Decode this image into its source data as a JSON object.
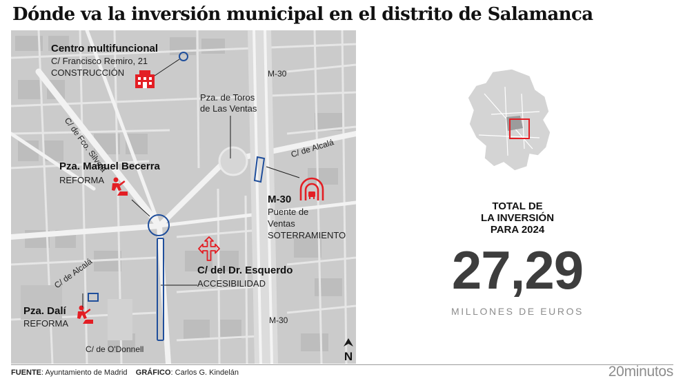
{
  "title": "Dónde va la inversión municipal en el distrito de Salamanca",
  "colors": {
    "red": "#e31e24",
    "blue": "#1f4e9b",
    "map_bg": "#c9c9c9",
    "roads": "#ececec"
  },
  "map": {
    "projects": [
      {
        "name": "Centro multifuncional",
        "address": "C/ Francisco Remiro, 21",
        "type": "CONSTRUCCIÓN",
        "icon": "building-icon"
      },
      {
        "name": "Pza. Manuel Becerra",
        "type": "REFORMA",
        "icon": "roadwork-icon"
      },
      {
        "name": "M-30",
        "line1": "Puente de",
        "line2": "Ventas",
        "type": "SOTERRAMIENTO",
        "icon": "tunnel-icon"
      },
      {
        "name": "C/ del Dr. Esquerdo",
        "type": "ACCESIBILIDAD",
        "icon": "directions-icon"
      },
      {
        "name": "Pza. Dalí",
        "type": "REFORMA",
        "icon": "roadwork-icon"
      }
    ],
    "landmark_line1": "Pza. de Toros",
    "landmark_line2": "de Las Ventas",
    "streets": {
      "silvela": "C/ de Fco. Silvela",
      "alcala_top": "C/ de Alcalá",
      "alcala_left": "C/ de Alcalá",
      "odonnell": "C/ de O'Donnell",
      "m30_top": "M-30",
      "m30_bottom": "M-30"
    },
    "north": "N"
  },
  "total": {
    "line1": "TOTAL DE",
    "line2": "LA INVERSIÓN",
    "line3": "PARA 2024",
    "value": "27,29",
    "unit": "MILLONES DE EUROS"
  },
  "footer": {
    "source_label": "FUENTE",
    "source_value": ": Ayuntamiento de Madrid",
    "graphic_label": "GRÁFICO",
    "graphic_value": ": Carlos G. Kindelán"
  },
  "brand": {
    "number": "20",
    "word": "minutos"
  }
}
